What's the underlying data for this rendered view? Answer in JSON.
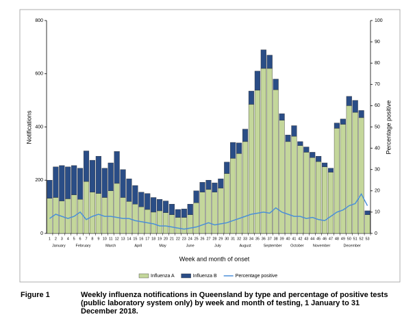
{
  "chart_data": {
    "type": "bar",
    "stacked": true,
    "x_label": "Week and month of onset",
    "y_label": "Notifications",
    "y2_label": "Percentage positive",
    "categories": [
      "1",
      "2",
      "3",
      "4",
      "5",
      "6",
      "7",
      "8",
      "9",
      "10",
      "11",
      "12",
      "13",
      "14",
      "15",
      "16",
      "17",
      "18",
      "19",
      "20",
      "21",
      "22",
      "23",
      "24",
      "25",
      "26",
      "27",
      "28",
      "29",
      "30",
      "31",
      "32",
      "33",
      "34",
      "35",
      "36",
      "37",
      "38",
      "39",
      "40",
      "41",
      "42",
      "43",
      "44",
      "45",
      "46",
      "47",
      "48",
      "49",
      "50",
      "51",
      "52",
      "53"
    ],
    "month_ticks": [
      {
        "value": 2.5,
        "label": "January"
      },
      {
        "value": 6.5,
        "label": "February"
      },
      {
        "value": 11,
        "label": "March"
      },
      {
        "value": 15.5,
        "label": "April"
      },
      {
        "value": 19.5,
        "label": "May"
      },
      {
        "value": 24,
        "label": "June"
      },
      {
        "value": 28.5,
        "label": "July"
      },
      {
        "value": 33,
        "label": "August"
      },
      {
        "value": 37.5,
        "label": "September"
      },
      {
        "value": 41.5,
        "label": "October"
      },
      {
        "value": 45.5,
        "label": "November"
      },
      {
        "value": 50.5,
        "label": "December"
      }
    ],
    "series": [
      {
        "name": "Influenza A",
        "color": "#c4d79b",
        "values": [
          132,
          135,
          122,
          130,
          145,
          128,
          195,
          155,
          150,
          135,
          160,
          188,
          135,
          120,
          110,
          100,
          90,
          80,
          85,
          78,
          70,
          60,
          60,
          70,
          115,
          155,
          165,
          155,
          170,
          225,
          282,
          300,
          345,
          485,
          538,
          620,
          620,
          540,
          425,
          345,
          365,
          330,
          305,
          285,
          270,
          250,
          230,
          395,
          410,
          480,
          455,
          435,
          70
        ]
      },
      {
        "name": "Influenza B",
        "color": "#2a4d86",
        "values": [
          68,
          115,
          133,
          120,
          110,
          117,
          115,
          120,
          140,
          110,
          105,
          120,
          105,
          85,
          70,
          55,
          60,
          55,
          43,
          44,
          40,
          30,
          32,
          40,
          45,
          37,
          35,
          35,
          35,
          43,
          60,
          40,
          47,
          50,
          72,
          70,
          50,
          40,
          25,
          25,
          40,
          15,
          20,
          20,
          20,
          15,
          15,
          20,
          20,
          35,
          45,
          27,
          15
        ]
      },
      {
        "name": "Percentage positive",
        "color": "#4a8fd8",
        "type": "line",
        "axis": "y2",
        "values": [
          7,
          9,
          8,
          7,
          8,
          10,
          6.5,
          8,
          9,
          8,
          8,
          7.5,
          7,
          7,
          6,
          5.5,
          5,
          4.5,
          3.5,
          3.5,
          3,
          2.5,
          2,
          2.5,
          3,
          4,
          5,
          4,
          4.5,
          5,
          6,
          7,
          8,
          9,
          9.5,
          10,
          9.5,
          12,
          10,
          9,
          8,
          8,
          7,
          7.5,
          6.5,
          6,
          8,
          10,
          11,
          13,
          14,
          18.5,
          13
        ]
      }
    ],
    "ylim": [
      0,
      800
    ],
    "yticks": [
      0,
      200,
      400,
      600,
      800
    ],
    "y2lim": [
      0,
      100
    ],
    "y2ticks": [
      0,
      10,
      20,
      30,
      40,
      50,
      60,
      70,
      80,
      90,
      100
    ],
    "legend": "bottom"
  },
  "caption": {
    "label": "Figure 1",
    "text": "Weekly influenza notifications in Queensland by type and percentage of positive tests (public laboratory system only) by week and month of testing, 1 January to 31 December 2018."
  }
}
